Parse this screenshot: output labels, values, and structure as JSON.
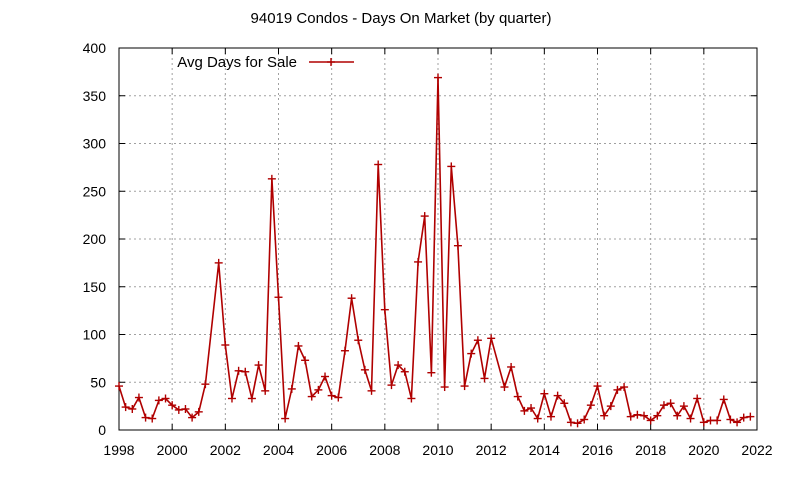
{
  "chart_data": {
    "type": "line",
    "title": "94019 Condos - Days On Market (by quarter)",
    "xlabel": "",
    "ylabel": "",
    "xlim": [
      1998,
      2022
    ],
    "ylim": [
      0,
      400
    ],
    "xticks": [
      1998,
      2000,
      2002,
      2004,
      2006,
      2008,
      2010,
      2012,
      2014,
      2016,
      2018,
      2020,
      2022
    ],
    "yticks": [
      0,
      50,
      100,
      150,
      200,
      250,
      300,
      350,
      400
    ],
    "grid": true,
    "legend_position": "top-left",
    "series": [
      {
        "name": "Avg Days for Sale",
        "color": "#b00000",
        "marker": "plus",
        "x": [
          1998.0,
          1998.25,
          1998.5,
          1998.75,
          1999.0,
          1999.25,
          1999.5,
          1999.75,
          2000.0,
          2000.25,
          2000.5,
          2000.75,
          2001.0,
          2001.25,
          2001.75,
          2002.0,
          2002.25,
          2002.5,
          2002.75,
          2003.0,
          2003.25,
          2003.5,
          2003.75,
          2004.0,
          2004.25,
          2004.5,
          2004.75,
          2005.0,
          2005.25,
          2005.5,
          2005.75,
          2006.0,
          2006.25,
          2006.5,
          2006.75,
          2007.0,
          2007.25,
          2007.5,
          2007.75,
          2008.0,
          2008.25,
          2008.5,
          2008.75,
          2009.0,
          2009.25,
          2009.5,
          2009.75,
          2010.0,
          2010.25,
          2010.5,
          2010.75,
          2011.0,
          2011.25,
          2011.5,
          2011.75,
          2012.0,
          2012.5,
          2012.75,
          2013.0,
          2013.25,
          2013.5,
          2013.75,
          2014.0,
          2014.25,
          2014.5,
          2014.75,
          2015.0,
          2015.25,
          2015.5,
          2015.75,
          2016.0,
          2016.25,
          2016.5,
          2016.75,
          2017.0,
          2017.25,
          2017.5,
          2017.75,
          2018.0,
          2018.25,
          2018.5,
          2018.75,
          2019.0,
          2019.25,
          2019.5,
          2019.75,
          2020.0,
          2020.25,
          2020.5,
          2020.75,
          2021.0,
          2021.25,
          2021.5,
          2021.75
        ],
        "y": [
          46,
          24,
          22,
          34,
          13,
          12,
          31,
          33,
          26,
          21,
          22,
          13,
          19,
          48,
          175,
          89,
          33,
          62,
          61,
          33,
          68,
          41,
          263,
          139,
          12,
          43,
          88,
          73,
          35,
          42,
          56,
          36,
          34,
          83,
          138,
          94,
          63,
          41,
          278,
          126,
          47,
          68,
          61,
          33,
          176,
          224,
          60,
          369,
          45,
          276,
          193,
          46,
          80,
          94,
          54,
          96,
          45,
          66,
          35,
          20,
          23,
          12,
          38,
          14,
          36,
          28,
          8,
          7,
          11,
          26,
          46,
          15,
          25,
          42,
          45,
          14,
          16,
          15,
          10,
          15,
          26,
          28,
          15,
          25,
          12,
          33,
          8,
          10,
          10,
          32,
          11,
          8,
          13,
          14
        ]
      }
    ]
  }
}
